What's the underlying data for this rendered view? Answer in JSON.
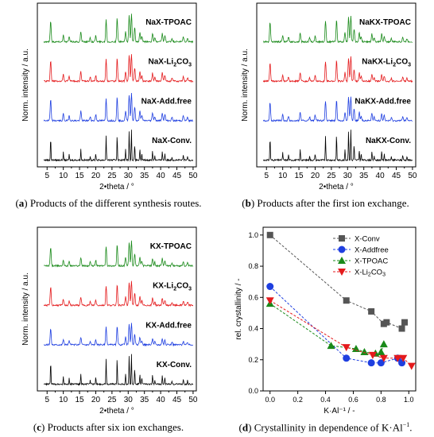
{
  "captions": {
    "a_letter": "a",
    "a_text": " Products of the different synthesis routes.",
    "b_letter": "b",
    "b_text": " Products after the first ion exchange.",
    "c_letter": "c",
    "c_text": " Products after six ion exchanges.",
    "d_letter": "d",
    "d_text": " Crystallinity in dependence of K·Al",
    "d_sup": "−1",
    "d_end": "."
  },
  "chart_data": [
    {
      "type": "line",
      "panel": "a",
      "xlabel": "2•theta / °",
      "ylabel": "Norm. intensity / a.u.",
      "xlim": [
        2,
        51
      ],
      "xticks": [
        5,
        10,
        15,
        20,
        25,
        30,
        35,
        40,
        45,
        50
      ],
      "series": [
        {
          "name": "NaX-TPOAC",
          "color": "#1a8a1a"
        },
        {
          "name": "NaX-Li2CO3",
          "color": "#e41a1c"
        },
        {
          "name": "NaX-Add.free",
          "color": "#1f3fe0"
        },
        {
          "name": "NaX-Conv.",
          "color": "#000000"
        }
      ]
    },
    {
      "type": "line",
      "panel": "b",
      "xlabel": "2•theta / °",
      "ylabel": "Norm. intensity / a.u.",
      "xlim": [
        2,
        51
      ],
      "xticks": [
        5,
        10,
        15,
        20,
        25,
        30,
        35,
        40,
        45,
        50
      ],
      "series": [
        {
          "name": "NaKX-TPOAC",
          "color": "#1a8a1a"
        },
        {
          "name": "NaKX-Li2CO3",
          "color": "#e41a1c"
        },
        {
          "name": "NaKX-Add.free",
          "color": "#1f3fe0"
        },
        {
          "name": "NaKX-Conv.",
          "color": "#000000"
        }
      ]
    },
    {
      "type": "line",
      "panel": "c",
      "xlabel": "2•theta / °",
      "ylabel": "Norm. intensity / a.u.",
      "xlim": [
        2,
        51
      ],
      "xticks": [
        5,
        10,
        15,
        20,
        25,
        30,
        35,
        40,
        45,
        50
      ],
      "series": [
        {
          "name": "KX-TPOAC",
          "color": "#1a8a1a"
        },
        {
          "name": "KX-Li2CO3",
          "color": "#e41a1c"
        },
        {
          "name": "KX-Add.free",
          "color": "#1f3fe0"
        },
        {
          "name": "KX-Conv.",
          "color": "#000000"
        }
      ]
    },
    {
      "type": "scatter",
      "panel": "d",
      "xlabel": "K·Al⁻¹ / -",
      "ylabel": "rel. crystallinity / -",
      "xlim": [
        -0.05,
        1.05
      ],
      "ylim": [
        0.0,
        1.05
      ],
      "xticks": [
        0.0,
        0.2,
        0.4,
        0.6,
        0.8,
        1.0
      ],
      "yticks": [
        0.0,
        0.2,
        0.4,
        0.6,
        0.8,
        1.0
      ],
      "legend": "top-right",
      "series": [
        {
          "name": "X-Conv",
          "color": "#555555",
          "marker": "square",
          "x": [
            0.0,
            0.55,
            0.73,
            0.82,
            0.84,
            0.95,
            0.97
          ],
          "y": [
            1.0,
            0.58,
            0.51,
            0.43,
            0.44,
            0.4,
            0.44
          ]
        },
        {
          "name": "X-Addfree",
          "color": "#1f3fe0",
          "marker": "circle",
          "x": [
            0.0,
            0.55,
            0.73,
            0.8,
            0.92,
            0.95
          ],
          "y": [
            0.67,
            0.21,
            0.18,
            0.18,
            0.21,
            0.18
          ]
        },
        {
          "name": "X-TPOAC",
          "color": "#1a8a1a",
          "marker": "triangle-up",
          "x": [
            0.0,
            0.44,
            0.62,
            0.68,
            0.76,
            0.8,
            0.82
          ],
          "y": [
            0.56,
            0.29,
            0.27,
            0.25,
            0.24,
            0.25,
            0.3
          ]
        },
        {
          "name": "X-Li2CO3",
          "color": "#e41a1c",
          "marker": "triangle-down",
          "x": [
            0.0,
            0.55,
            0.74,
            0.82,
            0.92,
            0.96,
            1.02
          ],
          "y": [
            0.58,
            0.28,
            0.23,
            0.21,
            0.21,
            0.21,
            0.16
          ]
        }
      ]
    }
  ]
}
